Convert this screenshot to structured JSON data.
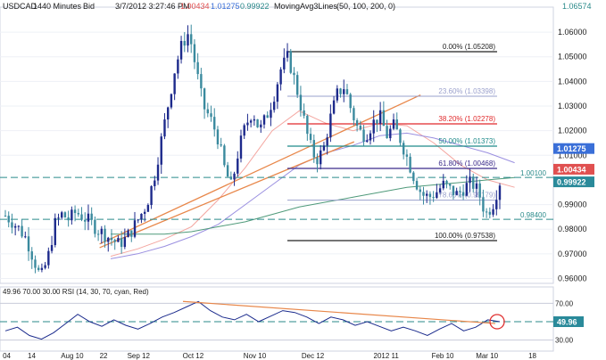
{
  "header": {
    "symbol": "USDCAD",
    "timeframe": "1440 Minutes",
    "side": "Bid",
    "datetime": "3/7/2012  3:27:46 PM",
    "ohlc": [
      "1.00434",
      "1.01275",
      "0.99922"
    ],
    "indicator": "MovingAvg3Lines",
    "indicator_params": "(50, 100, 200, 0)",
    "top_right_price": "1.06574"
  },
  "colors": {
    "bull": "#1d2a8c",
    "bear": "#3a8a9e",
    "trendline": "#e8874a",
    "ma50": "#f4a6a0",
    "ma100": "#9a8fe0",
    "ma200": "#4f9a7a",
    "fib_red": "#e0282a",
    "fib_teal": "#1e8a8a",
    "fib_navy": "#3a2a8a",
    "fib_gray": "#9aa0cc",
    "fib_black": "#222222",
    "dashed": "#2a8a8a",
    "tag_red": "#e05050",
    "tag_blue": "#3a6fd8",
    "tag_teal": "#2a8a9a",
    "rsi": "#1a2a8c",
    "rsi_circle": "#e03030"
  },
  "chart_data": {
    "type": "candlestick",
    "ylim": [
      0.958,
      1.068
    ],
    "price_ticks": [
      "1.06000",
      "1.05000",
      "1.04000",
      "1.03000",
      "1.02000",
      "1.01000",
      "0.99000",
      "0.98000",
      "0.97000",
      "0.96000"
    ],
    "x_labels": [
      "04",
      "14",
      "Aug 10",
      "22",
      "Sep 12",
      "Oct 12",
      "Nov 10",
      "Dec 12",
      "2012 11",
      "Feb 10",
      "Mar 10",
      "18"
    ],
    "fib_levels": [
      {
        "label": "0.00% (1.05208)",
        "value": 1.05208,
        "kind": "black"
      },
      {
        "label": "23.60% (1.03398)",
        "value": 1.03398,
        "kind": "gray"
      },
      {
        "label": "38.20% (1.02278)",
        "value": 1.02278,
        "kind": "red"
      },
      {
        "label": "50.00% (1.01373)",
        "value": 1.01373,
        "kind": "teal"
      },
      {
        "label": "61.80% (1.00468)",
        "value": 1.00468,
        "kind": "navy"
      },
      {
        "label": "78.60% (0.99179)",
        "value": 0.99179,
        "kind": "gray"
      },
      {
        "label": "100.00% (0.97538)",
        "value": 0.97538,
        "kind": "black"
      }
    ],
    "horizontal_levels": [
      {
        "label": "1.00100",
        "value": 1.001
      },
      {
        "label": "0.98400",
        "value": 0.984
      }
    ],
    "price_tags": [
      {
        "label": "1.01275",
        "value": 1.01275,
        "color": "tag_blue"
      },
      {
        "label": "1.00434",
        "value": 1.00434,
        "color": "tag_red"
      },
      {
        "label": "0.99922",
        "value": 0.99922,
        "color": "tag_teal"
      }
    ],
    "trendlines": [
      {
        "from": [
          0.18,
          0.974
        ],
        "to": [
          0.76,
          1.0345
        ]
      },
      {
        "from": [
          0.18,
          0.9725
        ],
        "to": [
          0.64,
          1.0155
        ]
      }
    ],
    "ma_series": [
      {
        "key": "ma50",
        "values": [
          0.969,
          0.972,
          0.976,
          0.981,
          0.992,
          1.005,
          1.02,
          1.028,
          1.023,
          1.02,
          1.023,
          1.022,
          1.015,
          1.006,
          1.0,
          0.997
        ]
      },
      {
        "key": "ma100",
        "values": [
          0.968,
          0.97,
          0.973,
          0.977,
          0.982,
          0.99,
          0.998,
          1.006,
          1.011,
          1.014,
          1.018,
          1.019,
          1.017,
          1.014,
          1.011,
          1.007
        ]
      },
      {
        "key": "ma200",
        "values": [
          0.978,
          0.978,
          0.978,
          0.979,
          0.981,
          0.983,
          0.986,
          0.989,
          0.991,
          0.993,
          0.995,
          0.997,
          0.998,
          0.999,
          1.0,
          1.001
        ]
      }
    ],
    "price_path": [
      0.9855,
      0.983,
      0.98,
      0.976,
      0.968,
      0.96,
      0.968,
      0.982,
      0.986,
      0.984,
      0.987,
      0.985,
      0.983,
      0.98,
      0.978,
      0.976,
      0.974,
      0.976,
      0.98,
      0.985,
      0.99,
      1.0,
      1.015,
      1.03,
      1.045,
      1.055,
      1.06,
      1.045,
      1.03,
      1.025,
      1.018,
      1.005,
      0.997,
      1.012,
      1.022,
      1.028,
      1.02,
      1.026,
      1.034,
      1.045,
      1.05,
      1.04,
      1.028,
      1.015,
      1.008,
      1.012,
      1.025,
      1.035,
      1.038,
      1.028,
      1.02,
      1.018,
      1.023,
      1.026,
      1.018,
      1.022,
      1.016,
      1.008,
      1.0,
      0.994,
      0.993,
      0.995,
      0.998,
      0.996,
      0.994,
      0.997,
      0.999,
      0.995,
      0.986,
      0.99,
      0.9992
    ],
    "rsi": {
      "label": "49.96  70.00  30.00  RSI (14, 30, 70, cyan, Red)",
      "value_tag": "49.96",
      "levels": [
        "70.00",
        "50.00",
        "30.00"
      ],
      "values": [
        40,
        44,
        35,
        31,
        38,
        48,
        58,
        50,
        45,
        52,
        46,
        42,
        48,
        55,
        60,
        66,
        72,
        62,
        55,
        52,
        58,
        50,
        56,
        62,
        60,
        55,
        48,
        55,
        52,
        46,
        50,
        45,
        40,
        44,
        40,
        35,
        42,
        48,
        40,
        44,
        52,
        49.96
      ]
    }
  }
}
